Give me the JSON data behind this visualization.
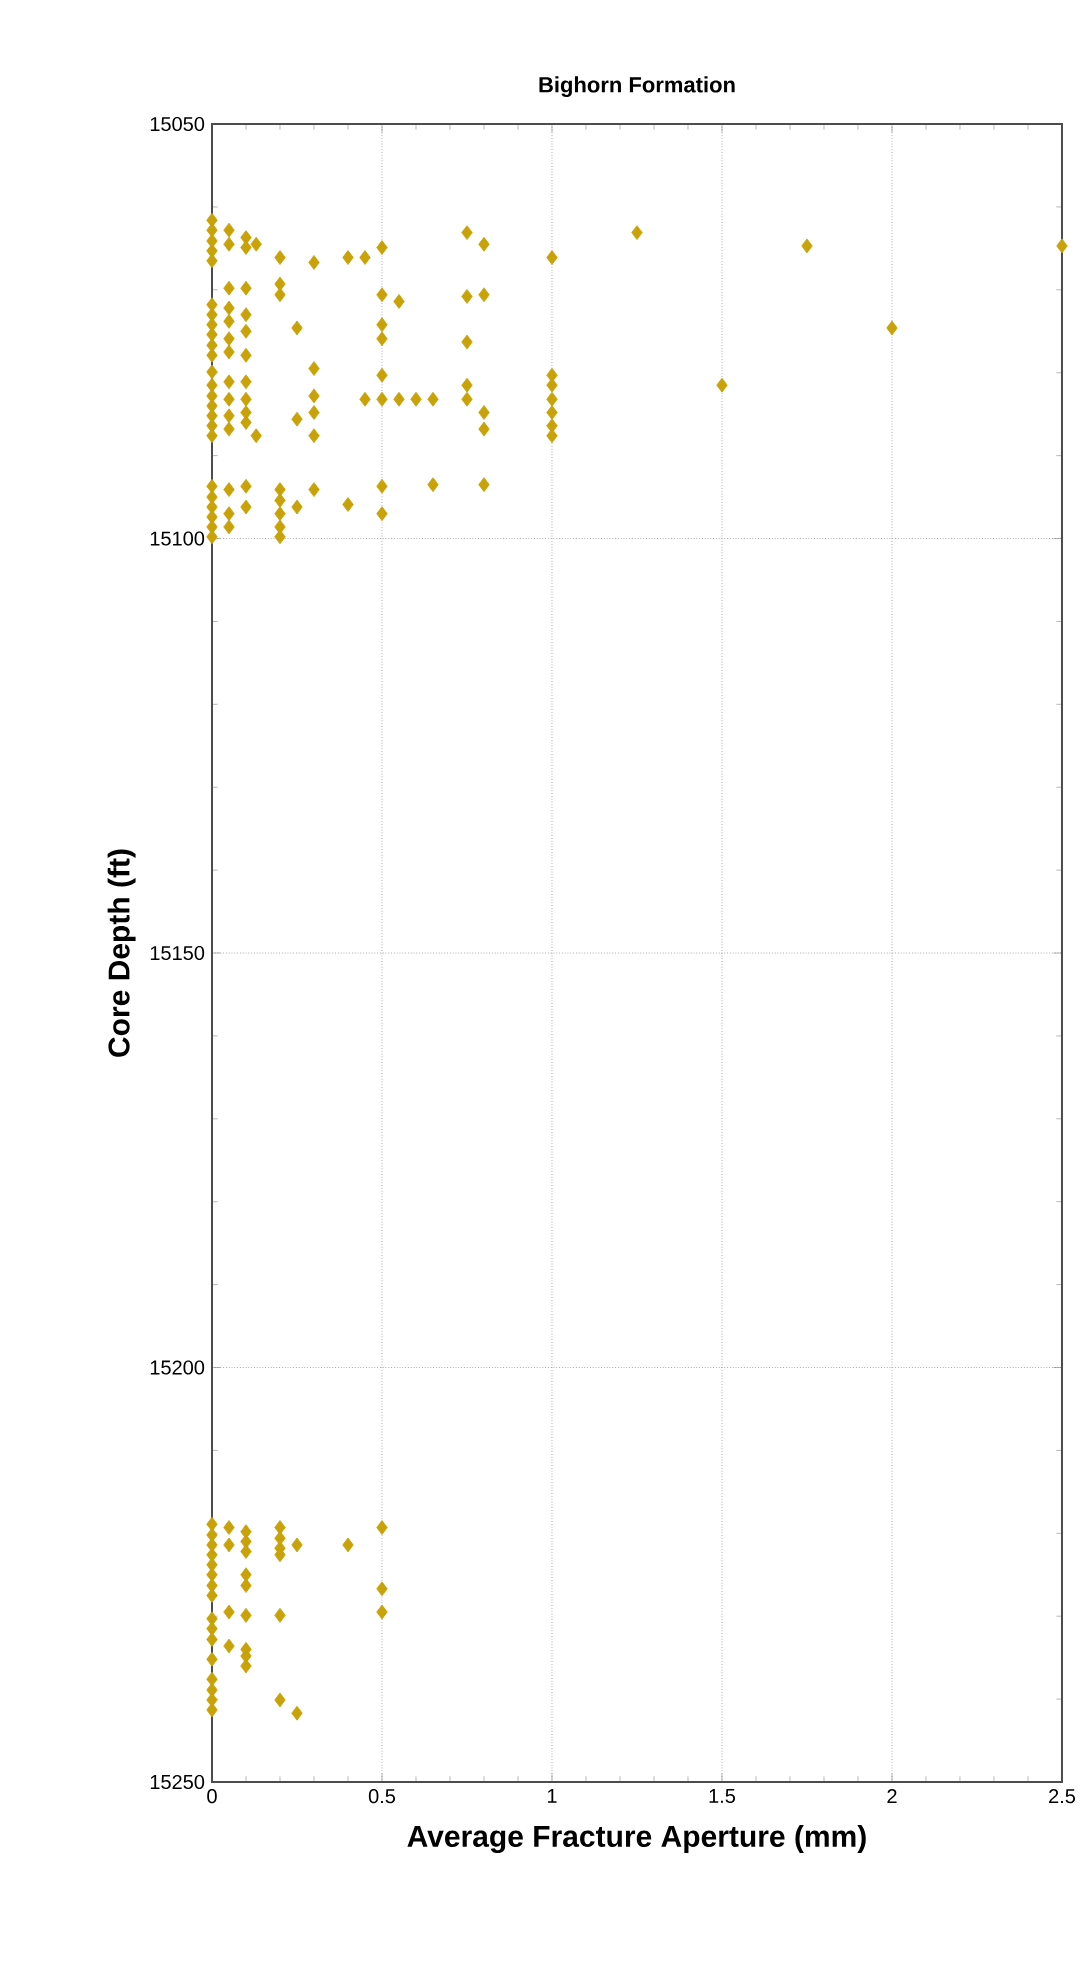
{
  "chart_data": {
    "type": "scatter",
    "title": "Bighorn Formation",
    "xlabel": "Average Fracture Aperture (mm)",
    "ylabel": "Core Depth (ft)",
    "x": [
      0,
      0,
      0,
      0,
      0,
      0,
      0,
      0,
      0,
      0,
      0,
      0,
      0,
      0,
      0,
      0,
      0,
      0,
      0,
      0,
      0,
      0,
      0,
      0,
      0.05,
      0.05,
      0.05,
      0.05,
      0.05,
      0.05,
      0.05,
      0.05,
      0.05,
      0.05,
      0.05,
      0.05,
      0.05,
      0.05,
      0.1,
      0.1,
      0.1,
      0.1,
      0.1,
      0.1,
      0.1,
      0.1,
      0.1,
      0.1,
      0.1,
      0.1,
      0.13,
      0.13,
      0.2,
      0.2,
      0.2,
      0.2,
      0.2,
      0.2,
      0.2,
      0.2,
      0.25,
      0.25,
      0.25,
      0.3,
      0.3,
      0.3,
      0.3,
      0.3,
      0.3,
      0.4,
      0.4,
      0.45,
      0.45,
      0.5,
      0.5,
      0.5,
      0.5,
      0.5,
      0.5,
      0.5,
      0.5,
      0.55,
      0.55,
      0.6,
      0.65,
      0.65,
      0.75,
      0.75,
      0.75,
      0.75,
      0.75,
      0.8,
      0.8,
      0.8,
      0.8,
      0.8,
      1,
      1,
      1,
      1,
      1,
      1,
      1,
      1.25,
      1.5,
      1.75,
      2,
      2.5,
      0,
      0,
      0,
      0,
      0,
      0,
      0,
      0,
      0,
      0,
      0,
      0,
      0,
      0,
      0,
      0,
      0.05,
      0.05,
      0.05,
      0.05,
      0.1,
      0.1,
      0.1,
      0.1,
      0.1,
      0.1,
      0.1,
      0.1,
      0.1,
      0.2,
      0.2,
      0.2,
      0.2,
      0.2,
      0.2,
      0.25,
      0.25,
      0.4,
      0.5,
      0.5,
      0.5
    ],
    "values": [
      15061.6,
      15062.8,
      15064.1,
      15065.3,
      15066.5,
      15071.8,
      15073.0,
      15074.2,
      15075.4,
      15076.7,
      15077.9,
      15079.9,
      15081.5,
      15082.8,
      15084.0,
      15085.2,
      15086.4,
      15087.6,
      15093.7,
      15095.0,
      15096.2,
      15097.4,
      15098.6,
      15099.8,
      15062.8,
      15064.5,
      15069.8,
      15072.2,
      15073.8,
      15075.9,
      15077.5,
      15081.1,
      15083.2,
      15085.2,
      15086.8,
      15094.1,
      15097.0,
      15098.6,
      15063.7,
      15064.9,
      15069.8,
      15073.0,
      15075.0,
      15077.9,
      15081.1,
      15083.2,
      15084.8,
      15086.0,
      15093.7,
      15096.2,
      15064.5,
      15087.6,
      15066.1,
      15069.3,
      15070.6,
      15094.1,
      15095.4,
      15097.0,
      15098.6,
      15099.8,
      15074.6,
      15085.6,
      15096.2,
      15066.7,
      15079.5,
      15082.8,
      15084.8,
      15087.6,
      15094.1,
      15066.1,
      15095.9,
      15066.1,
      15083.2,
      15064.9,
      15070.6,
      15074.2,
      15075.9,
      15080.3,
      15083.2,
      15093.7,
      15097.0,
      15071.4,
      15083.2,
      15083.2,
      15083.2,
      15093.5,
      15063.1,
      15070.8,
      15076.3,
      15081.5,
      15083.2,
      15064.5,
      15070.6,
      15084.8,
      15086.8,
      15093.5,
      15066.1,
      15080.3,
      15081.5,
      15083.2,
      15084.8,
      15086.4,
      15087.6,
      15063.1,
      15081.5,
      15064.7,
      15074.6,
      15064.7,
      15218.9,
      15220.2,
      15221.4,
      15222.6,
      15223.8,
      15225.0,
      15226.3,
      15227.5,
      15230.3,
      15231.5,
      15232.8,
      15235.2,
      15237.6,
      15238.9,
      15240.1,
      15241.3,
      15219.3,
      15221.4,
      15229.5,
      15233.6,
      15219.8,
      15221.0,
      15222.2,
      15225.0,
      15226.3,
      15229.9,
      15234.0,
      15234.8,
      15236.0,
      15219.3,
      15220.6,
      15221.8,
      15222.6,
      15229.9,
      15240.1,
      15221.4,
      15241.7,
      15221.4,
      15219.3,
      15226.7,
      15229.5
    ],
    "color": "#c9a208",
    "marker": "diamond",
    "grid": true,
    "xlim": [
      0,
      2.5
    ],
    "xticks": [
      0,
      0.5,
      1,
      1.5,
      2,
      2.5
    ],
    "ylim": [
      15250,
      15050
    ],
    "yticks": [
      15050,
      15100,
      15150,
      15200,
      15250
    ]
  }
}
